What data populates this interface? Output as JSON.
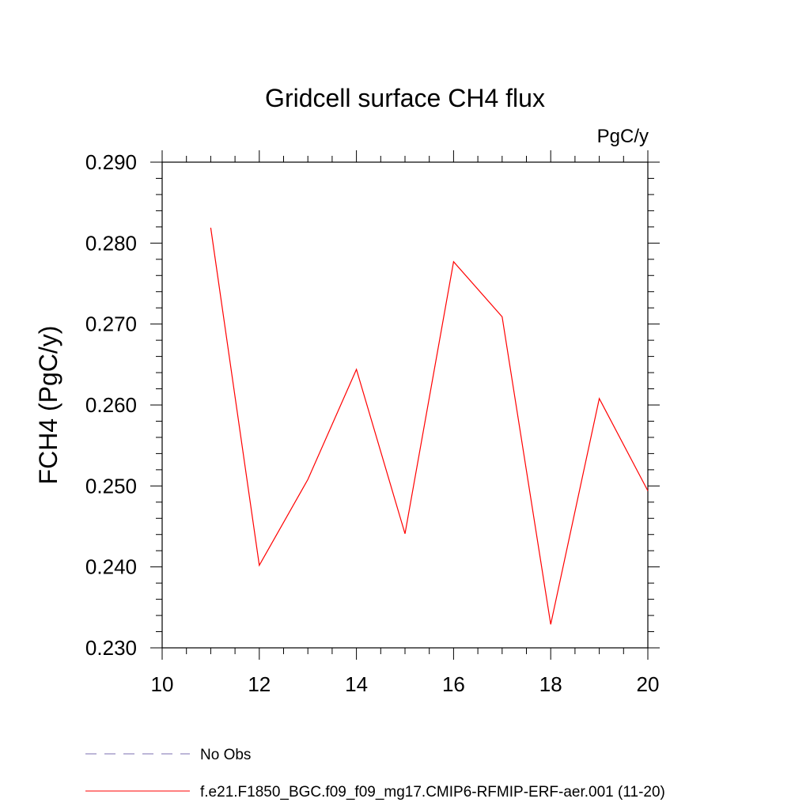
{
  "chart_data": {
    "type": "line",
    "title": "Gridcell surface CH4 flux",
    "units_label": "PgC/y",
    "ylabel": "FCH4  (PgC/y)",
    "xlabel": "",
    "xlim": [
      10,
      20
    ],
    "ylim": [
      0.23,
      0.29
    ],
    "x_ticks": [
      10,
      12,
      14,
      16,
      18,
      20
    ],
    "x_tick_labels": [
      "10",
      "12",
      "14",
      "16",
      "18",
      "20"
    ],
    "y_ticks": [
      0.23,
      0.24,
      0.25,
      0.26,
      0.27,
      0.28,
      0.29
    ],
    "y_tick_labels": [
      "0.230",
      "0.240",
      "0.250",
      "0.260",
      "0.270",
      "0.280",
      "0.290"
    ],
    "grid": false,
    "legend_position": "bottom",
    "series": [
      {
        "name": "No Obs",
        "color": "#7b6fb0",
        "dash": "dashed",
        "x": [],
        "y": []
      },
      {
        "name": "f.e21.F1850_BGC.f09_f09_mg17.CMIP6-RFMIP-ERF-aer.001 (11-20)",
        "color": "#ff0000",
        "dash": "solid",
        "x": [
          11,
          12,
          13,
          14,
          15,
          16,
          17,
          18,
          19,
          20
        ],
        "y": [
          0.2819,
          0.2402,
          0.2508,
          0.2644,
          0.2441,
          0.2777,
          0.2709,
          0.2329,
          0.2608,
          0.2494
        ]
      }
    ]
  }
}
